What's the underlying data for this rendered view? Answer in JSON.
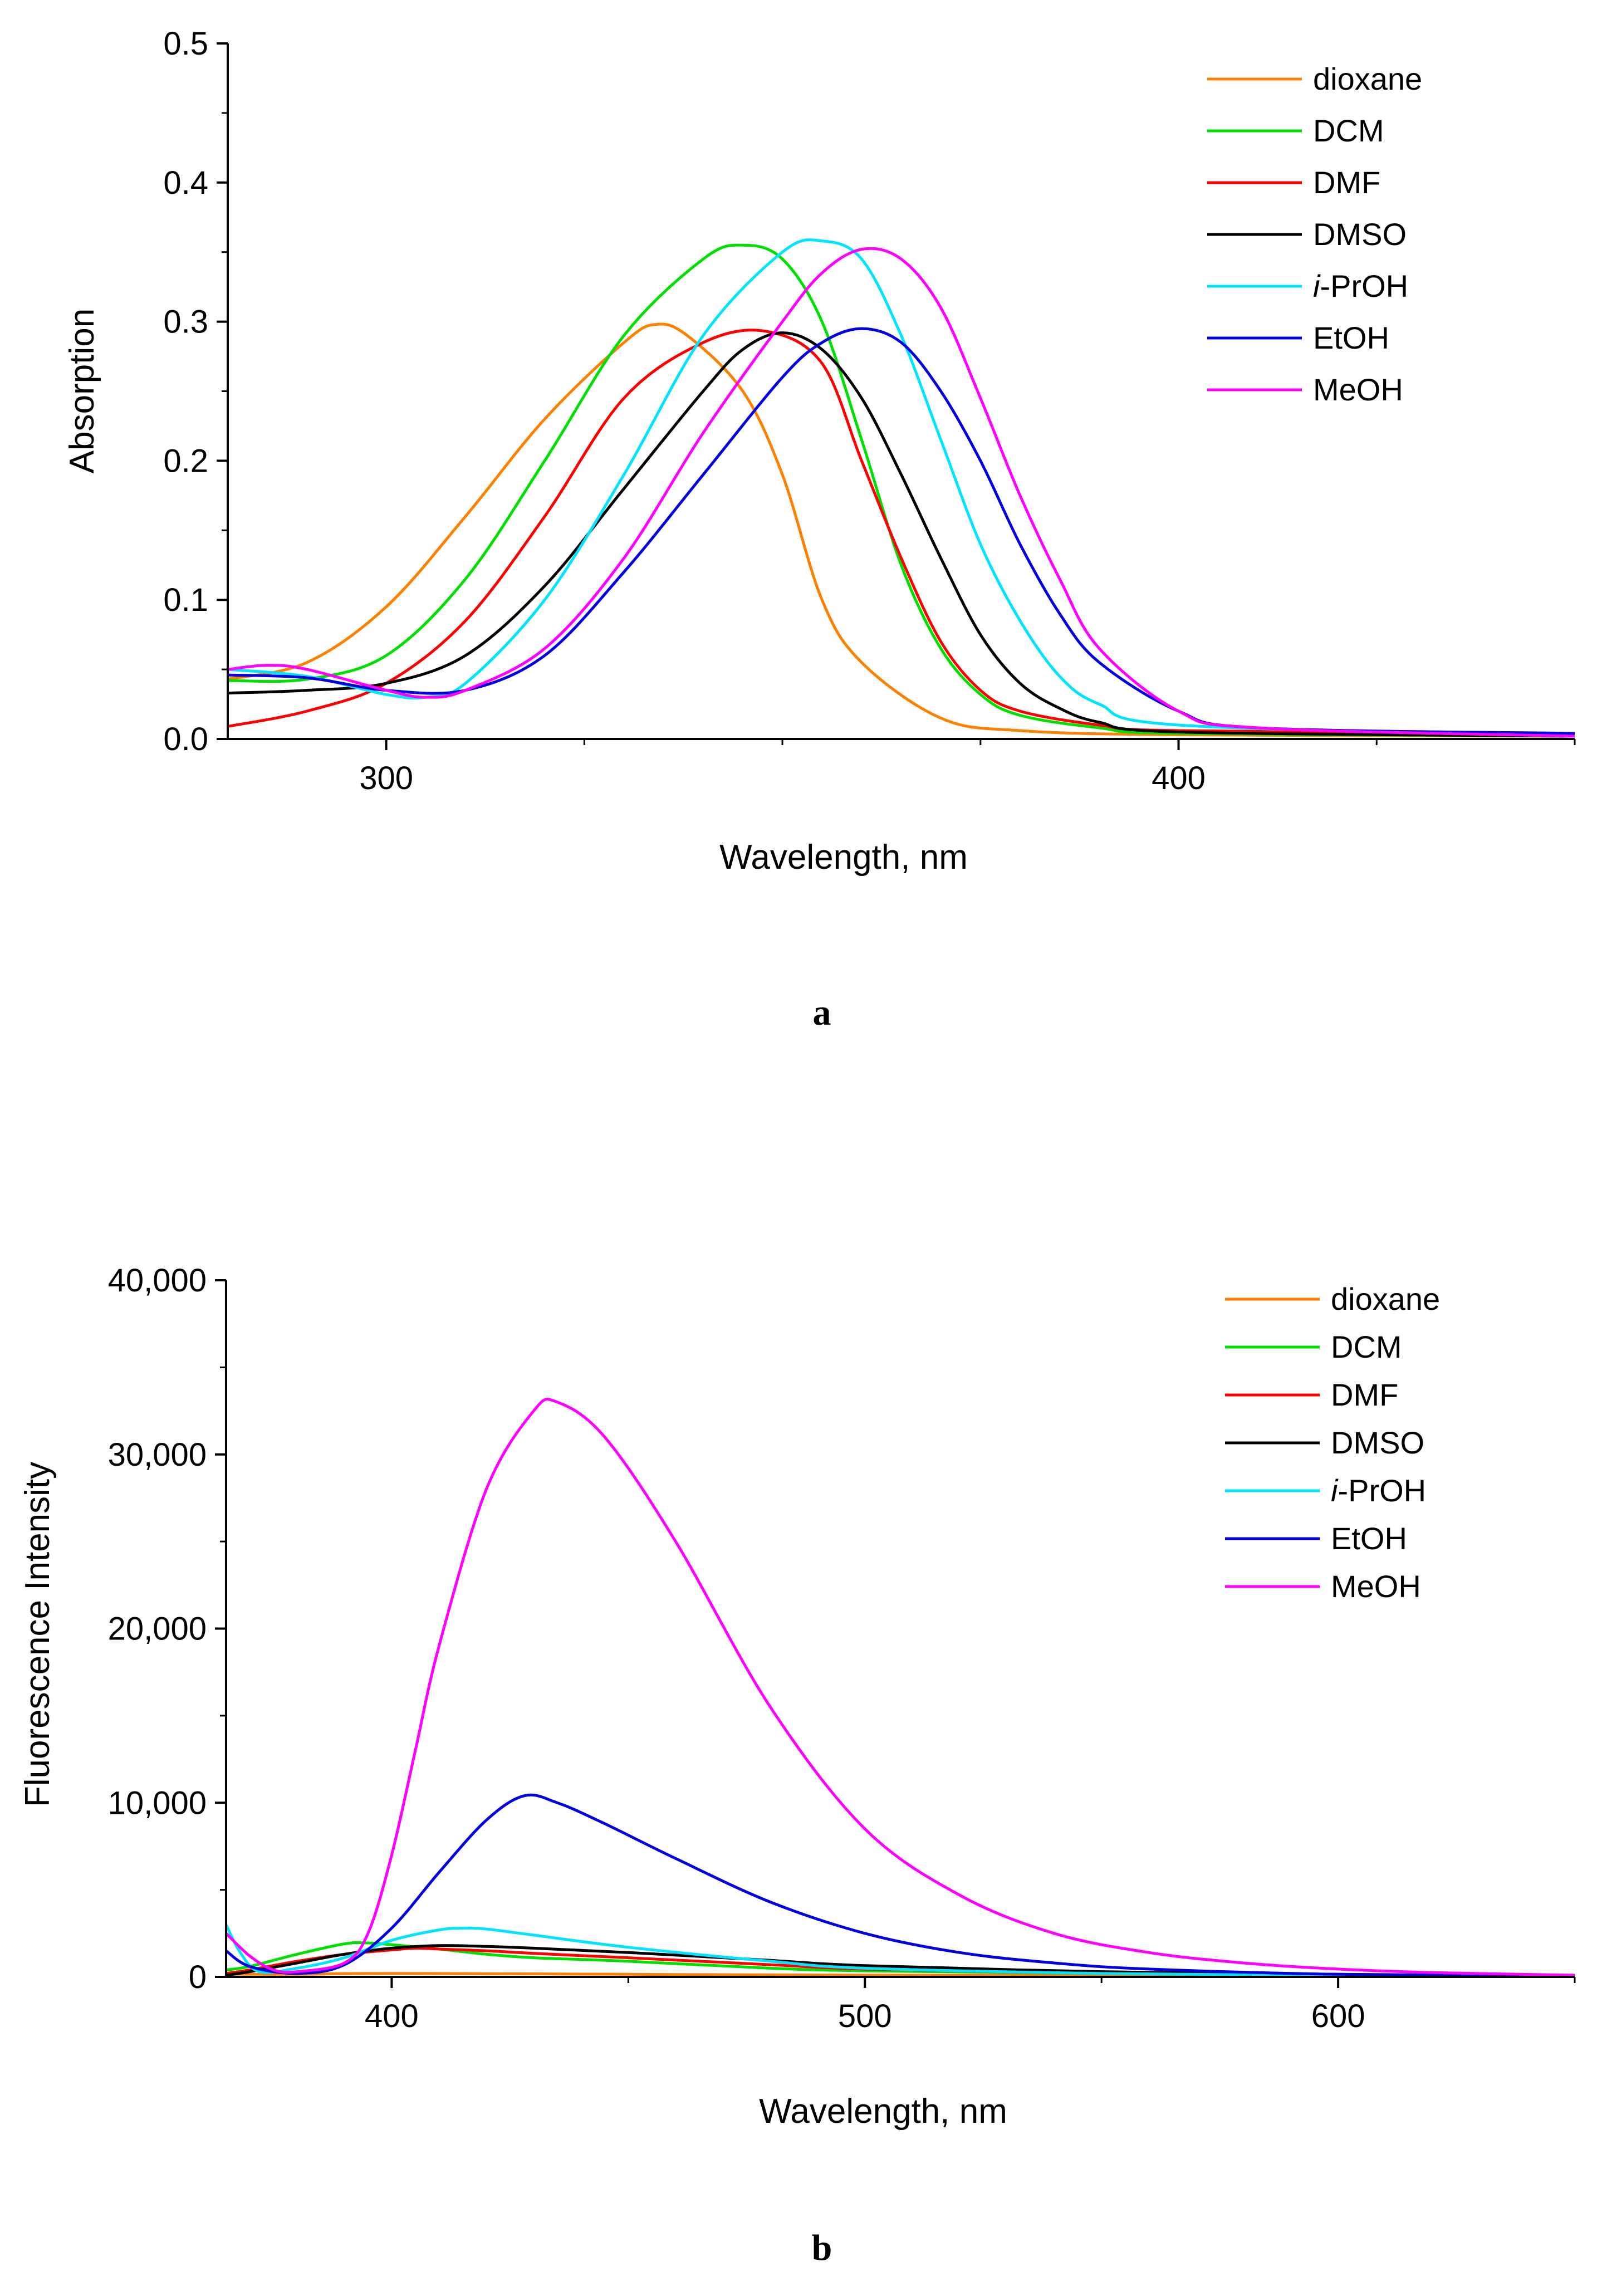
{
  "chart_data": [
    {
      "type": "line",
      "panel_label": "a",
      "title": "",
      "xlabel": "Wavelength, nm",
      "ylabel": "Absorption",
      "xlim": [
        280,
        450
      ],
      "ylim": [
        0,
        0.5
      ],
      "xticks": [
        300,
        400
      ],
      "xtick_labels": [
        "300",
        "400"
      ],
      "yticks": [
        0,
        0.1,
        0.2,
        0.3,
        0.4,
        0.5
      ],
      "ytick_labels": [
        "0.0",
        "0.1",
        "0.2",
        "0.3",
        "0.4",
        "0.5"
      ],
      "grid": false,
      "legend_position": "top-right",
      "series": [
        {
          "name": "dioxane",
          "name_prefix": "",
          "name_suffix": "dioxane",
          "color": "#FF8000",
          "x": [
            280,
            290,
            300,
            310,
            320,
            330,
            334,
            338,
            345,
            350,
            355,
            360,
            370,
            380,
            400,
            450
          ],
          "y": [
            0.043,
            0.055,
            0.095,
            0.16,
            0.23,
            0.285,
            0.298,
            0.29,
            0.25,
            0.19,
            0.1,
            0.055,
            0.015,
            0.006,
            0.003,
            0.002
          ]
        },
        {
          "name": "DCM",
          "name_prefix": "",
          "name_suffix": "DCM",
          "color": "#00E000",
          "x": [
            280,
            290,
            300,
            310,
            320,
            330,
            340,
            345,
            350,
            355,
            360,
            365,
            370,
            375,
            380,
            390,
            400,
            450
          ],
          "y": [
            0.042,
            0.043,
            0.06,
            0.115,
            0.2,
            0.29,
            0.345,
            0.355,
            0.345,
            0.3,
            0.215,
            0.125,
            0.065,
            0.032,
            0.017,
            0.008,
            0.004,
            0.002
          ]
        },
        {
          "name": "DMF",
          "name_prefix": "",
          "name_suffix": "DMF",
          "color": "#FF0000",
          "x": [
            280,
            290,
            300,
            310,
            320,
            330,
            340,
            348,
            355,
            360,
            365,
            370,
            375,
            380,
            390,
            400,
            450
          ],
          "y": [
            0.009,
            0.02,
            0.04,
            0.085,
            0.16,
            0.245,
            0.285,
            0.293,
            0.27,
            0.2,
            0.13,
            0.07,
            0.035,
            0.02,
            0.01,
            0.006,
            0.004
          ]
        },
        {
          "name": "DMSO",
          "name_prefix": "",
          "name_suffix": "DMSO",
          "color": "#000000",
          "x": [
            280,
            290,
            300,
            310,
            320,
            330,
            340,
            345,
            350,
            355,
            360,
            365,
            370,
            375,
            380,
            385,
            390,
            400,
            450
          ],
          "y": [
            0.033,
            0.035,
            0.04,
            0.06,
            0.11,
            0.18,
            0.25,
            0.28,
            0.292,
            0.28,
            0.245,
            0.19,
            0.13,
            0.075,
            0.04,
            0.022,
            0.012,
            0.005,
            0.002
          ]
        },
        {
          "name": "i-PrOH",
          "name_prefix": "i",
          "name_suffix": "-PrOH",
          "color": "#00E5FF",
          "x": [
            280,
            290,
            300,
            305,
            310,
            320,
            330,
            340,
            350,
            355,
            360,
            365,
            370,
            375,
            380,
            385,
            390,
            400,
            450
          ],
          "y": [
            0.05,
            0.045,
            0.032,
            0.03,
            0.04,
            0.1,
            0.19,
            0.29,
            0.35,
            0.358,
            0.345,
            0.29,
            0.215,
            0.14,
            0.085,
            0.045,
            0.025,
            0.01,
            0.002
          ]
        },
        {
          "name": "EtOH",
          "name_prefix": "",
          "name_suffix": "EtOH",
          "color": "#0000E0",
          "x": [
            280,
            290,
            300,
            310,
            320,
            330,
            340,
            350,
            355,
            360,
            365,
            370,
            375,
            380,
            385,
            390,
            400,
            410,
            450
          ],
          "y": [
            0.046,
            0.044,
            0.035,
            0.035,
            0.06,
            0.12,
            0.19,
            0.26,
            0.285,
            0.295,
            0.285,
            0.25,
            0.2,
            0.14,
            0.09,
            0.055,
            0.02,
            0.008,
            0.004
          ]
        },
        {
          "name": "MeOH",
          "name_prefix": "",
          "name_suffix": "MeOH",
          "color": "#FF00FF",
          "x": [
            280,
            285,
            290,
            300,
            305,
            310,
            320,
            330,
            340,
            350,
            355,
            360,
            365,
            370,
            375,
            380,
            385,
            390,
            400,
            410,
            450
          ],
          "y": [
            0.05,
            0.053,
            0.05,
            0.035,
            0.03,
            0.035,
            0.065,
            0.13,
            0.22,
            0.3,
            0.335,
            0.352,
            0.345,
            0.31,
            0.245,
            0.175,
            0.115,
            0.065,
            0.02,
            0.008,
            0.002
          ]
        }
      ]
    },
    {
      "type": "line",
      "panel_label": "b",
      "title": "",
      "xlabel": "Wavelength, nm",
      "ylabel": "Fluorescence Intensity",
      "xlim": [
        365,
        650
      ],
      "ylim": [
        0,
        40000
      ],
      "xticks": [
        400,
        500,
        600
      ],
      "xtick_labels": [
        "400",
        "500",
        "600"
      ],
      "yticks": [
        0,
        10000,
        20000,
        30000,
        40000
      ],
      "ytick_labels": [
        "0",
        "10,000",
        "20,000",
        "30,000",
        "40,000"
      ],
      "grid": false,
      "legend_position": "top-right",
      "series": [
        {
          "name": "dioxane",
          "name_prefix": "",
          "name_suffix": "dioxane",
          "color": "#FF8000",
          "x": [
            365,
            380,
            400,
            450,
            500,
            650
          ],
          "y": [
            150,
            150,
            200,
            150,
            100,
            50
          ]
        },
        {
          "name": "DCM",
          "name_prefix": "",
          "name_suffix": "DCM",
          "color": "#00E000",
          "x": [
            365,
            370,
            380,
            390,
            395,
            400,
            410,
            420,
            430,
            450,
            480,
            500,
            550,
            600,
            650
          ],
          "y": [
            400,
            600,
            1300,
            1900,
            1950,
            1850,
            1600,
            1300,
            1100,
            900,
            500,
            350,
            200,
            100,
            80
          ]
        },
        {
          "name": "DMF",
          "name_prefix": "",
          "name_suffix": "DMF",
          "color": "#FF0000",
          "x": [
            365,
            370,
            380,
            390,
            400,
            405,
            410,
            420,
            430,
            450,
            480,
            500,
            550,
            600,
            650
          ],
          "y": [
            200,
            400,
            900,
            1300,
            1550,
            1650,
            1600,
            1500,
            1350,
            1100,
            700,
            450,
            200,
            100,
            80
          ]
        },
        {
          "name": "DMSO",
          "name_prefix": "",
          "name_suffix": "DMSO",
          "color": "#000000",
          "x": [
            365,
            370,
            380,
            390,
            400,
            410,
            420,
            430,
            450,
            480,
            500,
            550,
            600,
            650
          ],
          "y": [
            100,
            300,
            800,
            1300,
            1650,
            1800,
            1750,
            1650,
            1400,
            950,
            650,
            300,
            150,
            80
          ]
        },
        {
          "name": "i-PrOH",
          "name_prefix": "i",
          "name_suffix": "-PrOH",
          "color": "#00E5FF",
          "x": [
            365,
            368,
            372,
            380,
            390,
            400,
            410,
            415,
            420,
            430,
            450,
            480,
            500,
            550,
            600,
            650
          ],
          "y": [
            3000,
            1400,
            300,
            500,
            1100,
            2100,
            2700,
            2800,
            2750,
            2400,
            1700,
            900,
            500,
            200,
            100,
            50
          ]
        },
        {
          "name": "EtOH",
          "name_prefix": "",
          "name_suffix": "EtOH",
          "color": "#0000E0",
          "x": [
            365,
            370,
            380,
            390,
            400,
            410,
            420,
            428,
            435,
            445,
            460,
            480,
            500,
            520,
            540,
            560,
            600,
            650
          ],
          "y": [
            1500,
            600,
            200,
            700,
            2800,
            6000,
            9000,
            10400,
            10000,
            8800,
            6800,
            4300,
            2500,
            1400,
            800,
            450,
            150,
            50
          ]
        },
        {
          "name": "MeOH",
          "name_prefix": "",
          "name_suffix": "MeOH",
          "color": "#FF00FF",
          "x": [
            365,
            370,
            375,
            380,
            390,
            395,
            400,
            405,
            410,
            420,
            430,
            435,
            445,
            460,
            480,
            500,
            520,
            540,
            560,
            580,
            600,
            620,
            650
          ],
          "y": [
            2500,
            1200,
            400,
            300,
            800,
            2500,
            7000,
            13000,
            19000,
            28000,
            32500,
            33000,
            31000,
            25000,
            15500,
            8500,
            4700,
            2500,
            1400,
            800,
            450,
            250,
            100
          ]
        }
      ]
    }
  ]
}
